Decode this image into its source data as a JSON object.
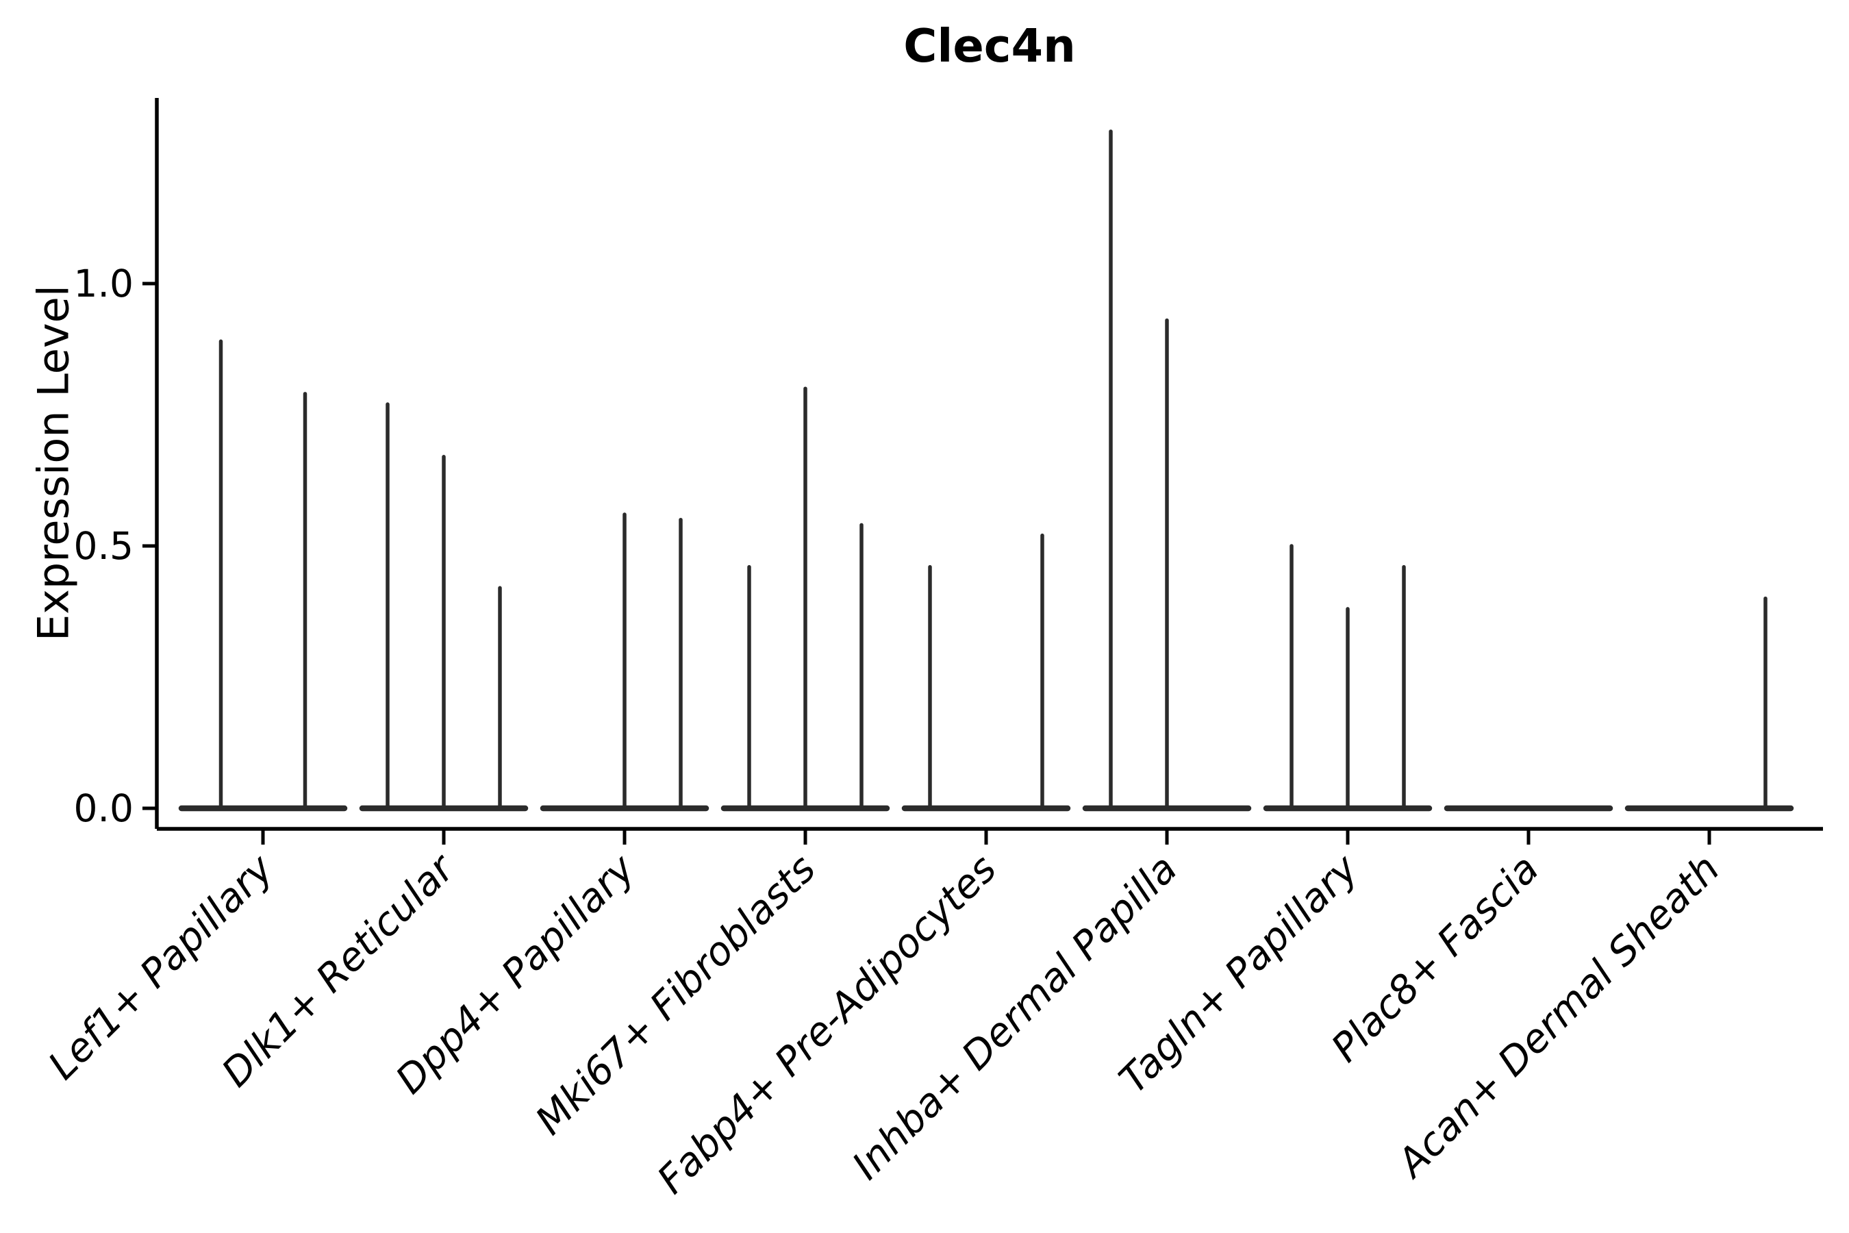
{
  "title": "Clec4n",
  "y_axis": {
    "label": "Expression Level",
    "tick_labels": [
      "0.0",
      "0.5",
      "1.0"
    ],
    "tick_values": [
      0.0,
      0.5,
      1.0
    ]
  },
  "chart_data": {
    "type": "violin",
    "title": "Clec4n",
    "xlabel": "",
    "ylabel": "Expression Level",
    "ylim": [
      0,
      1.35
    ],
    "y_ticks": [
      0.0,
      0.5,
      1.0
    ],
    "y_tick_labels": [
      "0.0",
      "0.5",
      "1.0"
    ],
    "grid": false,
    "legend_position": "none",
    "x_tick_label_style": "italic, rotated 45deg",
    "description": "Zero-inflated split violin plot; each category holds 2-3 thin sub-violins drawn as a flat base at 0 with a narrow vertical spike up to the max expression value. Zero entries are flat violins with no spike.",
    "categories": [
      {
        "label": "Lef1+ Papillary",
        "violin_maxima": [
          0.89,
          0.79
        ]
      },
      {
        "label": "Dlk1+ Reticular",
        "violin_maxima": [
          0.77,
          0.67,
          0.42
        ]
      },
      {
        "label": "Dpp4+ Papillary",
        "violin_maxima": [
          0,
          0.56,
          0.55
        ]
      },
      {
        "label": "Mki67+ Fibroblasts",
        "violin_maxima": [
          0.46,
          0.8,
          0.54
        ]
      },
      {
        "label": "Fabp4+ Pre-Adipocytes",
        "violin_maxima": [
          0.46,
          0,
          0.52
        ]
      },
      {
        "label": "Inhba+ Dermal Papilla",
        "violin_maxima": [
          1.29,
          0.93,
          0
        ]
      },
      {
        "label": "Tagln+ Papillary",
        "violin_maxima": [
          0.5,
          0.38,
          0.46
        ]
      },
      {
        "label": "Plac8+ Fascia",
        "violin_maxima": [
          0,
          0,
          0
        ]
      },
      {
        "label": "Acan+ Dermal Sheath",
        "violin_maxima": [
          0,
          0,
          0.4
        ]
      }
    ]
  },
  "colors": {
    "background": "#ffffff",
    "axis": "#000000",
    "text": "#000000",
    "violin_stroke": "#2b2b2b"
  }
}
